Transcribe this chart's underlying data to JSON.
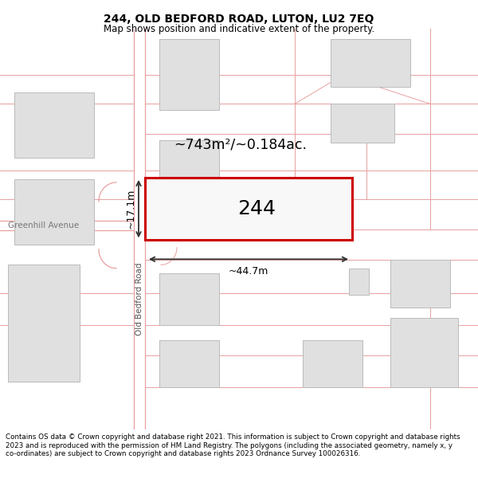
{
  "title": "244, OLD BEDFORD ROAD, LUTON, LU2 7EQ",
  "subtitle": "Map shows position and indicative extent of the property.",
  "footer": "Contains OS data © Crown copyright and database right 2021. This information is subject to Crown copyright and database rights 2023 and is reproduced with the permission of HM Land Registry. The polygons (including the associated geometry, namely x, y co-ordinates) are subject to Crown copyright and database rights 2023 Ordnance Survey 100026316.",
  "road_line_color": "#e8a0a0",
  "building_fill": "#e0e0e0",
  "building_edge": "#bbbbbb",
  "highlight_fill": "#f8f8f8",
  "highlight_edge": "#cc0000",
  "area_text": "~743m²/~0.184ac.",
  "width_text": "~44.7m",
  "height_text": "~17.1m",
  "address_label": "244",
  "street_label": "Old Bedford Road",
  "avenue_label": "Greenhill Avenue"
}
